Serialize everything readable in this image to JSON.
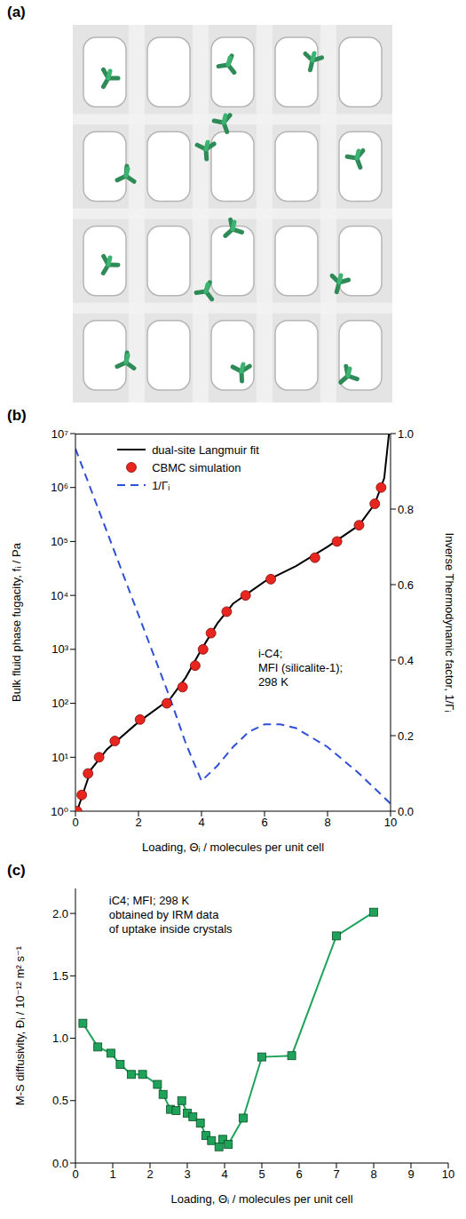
{
  "image_panel": {
    "panel_label": "(a)"
  },
  "chart_data": [
    {
      "panel_label": "(b)",
      "type": "line",
      "annotation": "i-C4;\nMFI (silicalite-1);\n298 K",
      "xlabel": "Loading, Θᵢ / molecules per unit cell",
      "ylabel": "Bulk fluid phase fugacity, fᵢ / Pa",
      "y2label": "Inverse Thermodynamic factor, 1/Γᵢ",
      "xlim": [
        0,
        10
      ],
      "xticks": [
        0,
        2,
        4,
        6,
        8,
        10
      ],
      "ylim": [
        1,
        10000000
      ],
      "yticks": [
        {
          "value": 1,
          "label": "10⁰"
        },
        {
          "value": 10,
          "label": "10¹"
        },
        {
          "value": 100,
          "label": "10²"
        },
        {
          "value": 1000,
          "label": "10³"
        },
        {
          "value": 10000,
          "label": "10⁴"
        },
        {
          "value": 100000,
          "label": "10⁵"
        },
        {
          "value": 1000000,
          "label": "10⁶"
        },
        {
          "value": 10000000,
          "label": "10⁷"
        }
      ],
      "y2lim": [
        0,
        1
      ],
      "y2ticks": [
        {
          "value": 0,
          "label": "0.0"
        },
        0.2,
        0.4,
        0.6,
        0.8,
        {
          "value": 1,
          "label": "1.0"
        }
      ],
      "log": "y",
      "legend": "upper center",
      "series": [
        {
          "name": "dual-site Langmuir fit",
          "type": "line",
          "color": "#000000",
          "line_style": "solid",
          "x": [
            0.05,
            0.5,
            1,
            2,
            3,
            3.5,
            4,
            4.5,
            5,
            6,
            7,
            8,
            9,
            9.5,
            9.8,
            9.95
          ],
          "values": [
            1,
            6,
            14,
            45,
            120,
            300,
            1000,
            3000,
            7000,
            18000,
            35000,
            80000,
            200000,
            500000,
            1500000,
            10000000
          ]
        },
        {
          "name": "CBMC simulation",
          "type": "scatter",
          "marker": "circle",
          "color": "#e8251f",
          "x": [
            0.05,
            0.2,
            0.4,
            0.75,
            1.25,
            2.05,
            2.9,
            3.4,
            3.8,
            4.05,
            4.3,
            4.8,
            5.4,
            6.2,
            7.6,
            8.3,
            9.0,
            9.5,
            9.7
          ],
          "values": [
            1,
            2,
            5,
            10,
            20,
            50,
            100,
            200,
            500,
            1000,
            2000,
            5000,
            10000,
            20000,
            50000,
            100000,
            200000,
            500000,
            1000000
          ]
        },
        {
          "name": "1/Γᵢ",
          "type": "line",
          "color": "#2f4fd6",
          "line_style": "dashed",
          "axis": "y2",
          "x": [
            0,
            1,
            2,
            3,
            3.5,
            4,
            4.5,
            5,
            5.5,
            6,
            6.5,
            7,
            8,
            9,
            10
          ],
          "values": [
            0.96,
            0.74,
            0.52,
            0.3,
            0.18,
            0.08,
            0.12,
            0.17,
            0.21,
            0.23,
            0.23,
            0.22,
            0.17,
            0.1,
            0.02
          ]
        }
      ]
    },
    {
      "panel_label": "(c)",
      "type": "line",
      "annotation": "iC4; MFI; 298 K\nobtained by IRM data\nof uptake inside crystals",
      "xlabel": "Loading, Θᵢ / molecules per unit cell",
      "ylabel": "M-S diffusivity, Đᵢ / 10⁻¹² m² s⁻¹",
      "xlim": [
        0,
        10
      ],
      "xticks": [
        0,
        1,
        2,
        3,
        4,
        5,
        6,
        7,
        8,
        9,
        10
      ],
      "ylim": [
        0,
        2.2
      ],
      "yticks": [
        {
          "value": 0,
          "label": "0.0"
        },
        0.5,
        {
          "value": 1,
          "label": "1.0"
        },
        1.5,
        {
          "value": 2,
          "label": "2.0"
        }
      ],
      "series": [
        {
          "type": "line",
          "marker": "square",
          "color": "#1fa35b",
          "line_style": "solid",
          "x": [
            0.2,
            0.6,
            0.95,
            1.2,
            1.5,
            1.8,
            2.2,
            2.35,
            2.55,
            2.7,
            2.85,
            3.0,
            3.15,
            3.35,
            3.5,
            3.65,
            3.85,
            3.95,
            4.1,
            4.5,
            5.0,
            5.8,
            7.0,
            8.0
          ],
          "values": [
            1.12,
            0.93,
            0.88,
            0.79,
            0.71,
            0.71,
            0.63,
            0.55,
            0.43,
            0.42,
            0.5,
            0.4,
            0.37,
            0.32,
            0.22,
            0.18,
            0.13,
            0.19,
            0.15,
            0.36,
            0.85,
            0.86,
            1.82,
            2.01
          ]
        }
      ]
    }
  ]
}
